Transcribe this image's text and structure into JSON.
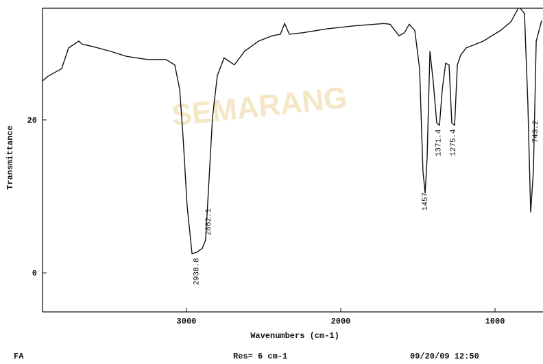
{
  "chart_data": {
    "type": "line",
    "xlabel": "Wavenumbers (cm-1)",
    "ylabel": "Transmittance",
    "watermark": "SEMARANG",
    "footer": {
      "left": "FA",
      "center": "Res= 6 cm-1",
      "right": "09/20/09 12:50"
    },
    "xlim": [
      3933,
      689
    ],
    "ylim": [
      -5.1,
      34.6
    ],
    "xticks": [
      3000,
      2000,
      1000
    ],
    "yticks": [
      0,
      20
    ],
    "x": [
      3933,
      3898,
      3809,
      3764,
      3698,
      3676,
      3609,
      3498,
      3387,
      3253,
      3133,
      3076,
      3044,
      3022,
      2996,
      2964,
      2933,
      2898,
      2876,
      2858,
      2831,
      2800,
      2756,
      2689,
      2622,
      2533,
      2444,
      2391,
      2364,
      2333,
      2244,
      2089,
      1911,
      1720,
      1680,
      1622,
      1587,
      1556,
      1520,
      1489,
      1467,
      1453,
      1440,
      1422,
      1400,
      1378,
      1360,
      1342,
      1320,
      1298,
      1280,
      1262,
      1244,
      1222,
      1187,
      1076,
      964,
      898,
      844,
      809,
      787,
      769,
      751,
      733,
      698
    ],
    "series": [
      {
        "color": "#111111",
        "values": [
          25.1,
          25.7,
          26.7,
          29.4,
          30.3,
          29.9,
          29.6,
          29.0,
          28.3,
          27.9,
          27.9,
          27.2,
          24.0,
          17.8,
          8.8,
          2.5,
          2.7,
          3.2,
          4.3,
          10.6,
          20.4,
          25.8,
          28.1,
          27.2,
          29.0,
          30.3,
          31.0,
          31.2,
          32.6,
          31.2,
          31.4,
          31.9,
          32.3,
          32.6,
          32.5,
          31.0,
          31.4,
          32.5,
          31.7,
          26.7,
          13.3,
          10.4,
          15.1,
          29.0,
          24.9,
          19.6,
          19.3,
          24.0,
          27.4,
          27.2,
          19.6,
          19.3,
          27.2,
          28.5,
          29.4,
          30.3,
          31.7,
          32.8,
          34.8,
          33.9,
          22.2,
          7.9,
          13.3,
          30.3,
          33.0
        ]
      }
    ],
    "peaks": [
      2938.8,
      2862.1,
      1457,
      1371.4,
      1275.4,
      743.2
    ]
  }
}
